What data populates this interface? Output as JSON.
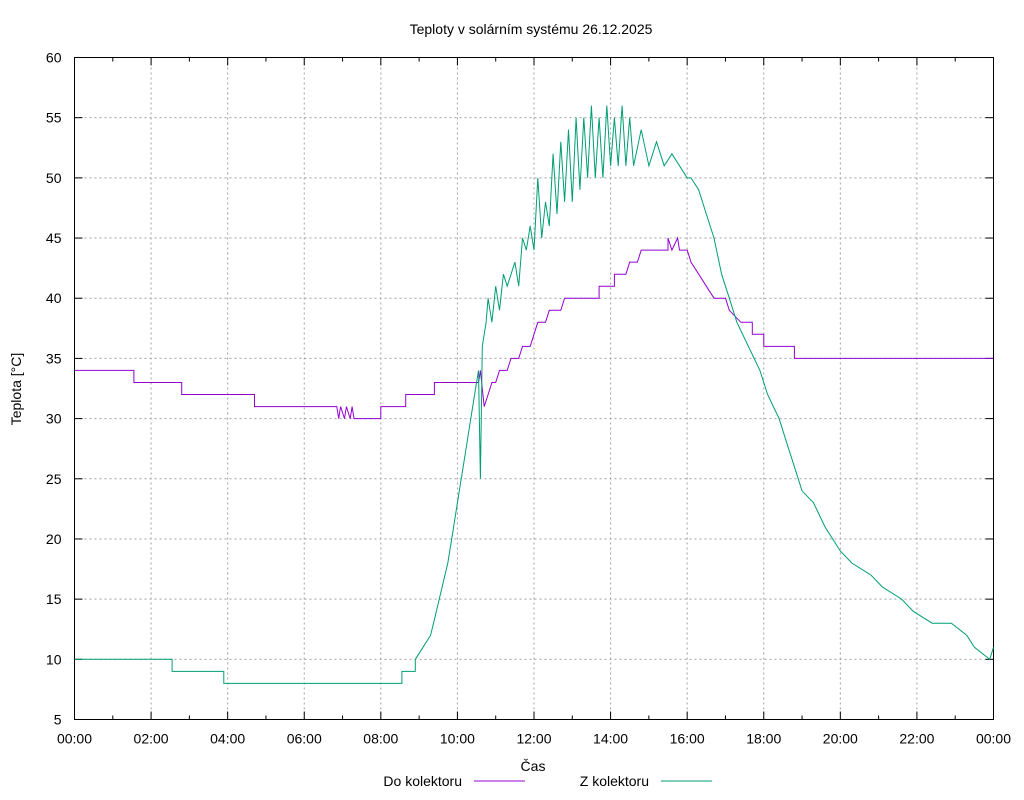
{
  "chart_data": {
    "type": "line",
    "title": "Teploty v solárním systému 26.12.2025",
    "xlabel": "Čas",
    "ylabel": "Teplota [°C]",
    "xlim": [
      0,
      24
    ],
    "ylim": [
      5,
      60
    ],
    "grid": true,
    "legend_position": "bottom-center",
    "x_tick_values": [
      0,
      2,
      4,
      6,
      8,
      10,
      12,
      14,
      16,
      18,
      20,
      22,
      24
    ],
    "x_tick_labels": [
      "00:00",
      "02:00",
      "04:00",
      "06:00",
      "08:00",
      "10:00",
      "12:00",
      "14:00",
      "16:00",
      "18:00",
      "20:00",
      "22:00",
      "00:00"
    ],
    "y_tick_values": [
      5,
      10,
      15,
      20,
      25,
      30,
      35,
      40,
      45,
      50,
      55,
      60
    ],
    "y_tick_labels": [
      "5",
      "10",
      "15",
      "20",
      "25",
      "30",
      "35",
      "40",
      "45",
      "50",
      "55",
      "60"
    ],
    "x_unit": "hours",
    "series": [
      {
        "name": "Do kolektoru",
        "color": "#9400d3",
        "points": [
          [
            0,
            34
          ],
          [
            1.55,
            34
          ],
          [
            1.55,
            33
          ],
          [
            2.8,
            33
          ],
          [
            2.8,
            32
          ],
          [
            4.7,
            32
          ],
          [
            4.7,
            31
          ],
          [
            6.85,
            31
          ],
          [
            6.9,
            30
          ],
          [
            6.95,
            31
          ],
          [
            7.05,
            30
          ],
          [
            7.1,
            31
          ],
          [
            7.2,
            30
          ],
          [
            7.25,
            31
          ],
          [
            7.3,
            30
          ],
          [
            8.0,
            30
          ],
          [
            8.0,
            31
          ],
          [
            8.65,
            31
          ],
          [
            8.65,
            32
          ],
          [
            9.4,
            32
          ],
          [
            9.4,
            33
          ],
          [
            10.55,
            33
          ],
          [
            10.6,
            34
          ],
          [
            10.7,
            31
          ],
          [
            10.8,
            32
          ],
          [
            10.9,
            33
          ],
          [
            11.0,
            33
          ],
          [
            11.1,
            34
          ],
          [
            11.3,
            34
          ],
          [
            11.4,
            35
          ],
          [
            11.6,
            35
          ],
          [
            11.7,
            36
          ],
          [
            11.9,
            36
          ],
          [
            12.0,
            37
          ],
          [
            12.1,
            38
          ],
          [
            12.3,
            38
          ],
          [
            12.4,
            39
          ],
          [
            12.7,
            39
          ],
          [
            12.8,
            40
          ],
          [
            13.7,
            40
          ],
          [
            13.7,
            41
          ],
          [
            14.1,
            41
          ],
          [
            14.1,
            42
          ],
          [
            14.4,
            42
          ],
          [
            14.5,
            43
          ],
          [
            14.7,
            43
          ],
          [
            14.8,
            44
          ],
          [
            15.5,
            44
          ],
          [
            15.5,
            45
          ],
          [
            15.6,
            44
          ],
          [
            15.75,
            45
          ],
          [
            15.8,
            44
          ],
          [
            16.0,
            44
          ],
          [
            16.1,
            43
          ],
          [
            16.3,
            42
          ],
          [
            16.5,
            41
          ],
          [
            16.7,
            40
          ],
          [
            17.0,
            40
          ],
          [
            17.1,
            39
          ],
          [
            17.4,
            38
          ],
          [
            17.7,
            38
          ],
          [
            17.7,
            37
          ],
          [
            18.0,
            37
          ],
          [
            18.0,
            36
          ],
          [
            18.8,
            36
          ],
          [
            18.8,
            35
          ],
          [
            24,
            35
          ]
        ]
      },
      {
        "name": "Z kolektoru",
        "color": "#009e73",
        "points": [
          [
            0,
            10
          ],
          [
            2.55,
            10
          ],
          [
            2.55,
            9
          ],
          [
            3.9,
            9
          ],
          [
            3.9,
            8
          ],
          [
            8.55,
            8
          ],
          [
            8.55,
            9
          ],
          [
            8.9,
            9
          ],
          [
            8.9,
            10
          ],
          [
            9.1,
            11
          ],
          [
            9.3,
            12
          ],
          [
            9.45,
            14
          ],
          [
            9.6,
            16
          ],
          [
            9.75,
            18
          ],
          [
            9.85,
            20
          ],
          [
            9.95,
            22
          ],
          [
            10.05,
            24
          ],
          [
            10.15,
            26
          ],
          [
            10.25,
            28
          ],
          [
            10.35,
            30
          ],
          [
            10.45,
            32
          ],
          [
            10.55,
            34
          ],
          [
            10.6,
            25
          ],
          [
            10.65,
            36
          ],
          [
            10.75,
            38
          ],
          [
            10.8,
            40
          ],
          [
            10.9,
            38
          ],
          [
            11.0,
            41
          ],
          [
            11.1,
            39
          ],
          [
            11.2,
            42
          ],
          [
            11.3,
            41
          ],
          [
            11.5,
            43
          ],
          [
            11.6,
            41
          ],
          [
            11.7,
            45
          ],
          [
            11.8,
            44
          ],
          [
            11.9,
            46
          ],
          [
            12.0,
            44
          ],
          [
            12.1,
            50
          ],
          [
            12.2,
            45
          ],
          [
            12.3,
            48
          ],
          [
            12.4,
            46
          ],
          [
            12.5,
            52
          ],
          [
            12.6,
            47
          ],
          [
            12.7,
            53
          ],
          [
            12.8,
            48
          ],
          [
            12.9,
            54
          ],
          [
            13.0,
            48
          ],
          [
            13.1,
            55
          ],
          [
            13.2,
            49
          ],
          [
            13.3,
            55
          ],
          [
            13.4,
            50
          ],
          [
            13.5,
            56
          ],
          [
            13.6,
            50
          ],
          [
            13.7,
            55
          ],
          [
            13.8,
            50
          ],
          [
            13.9,
            56
          ],
          [
            14.0,
            51
          ],
          [
            14.1,
            55
          ],
          [
            14.2,
            51
          ],
          [
            14.3,
            56
          ],
          [
            14.4,
            51
          ],
          [
            14.5,
            55
          ],
          [
            14.6,
            51
          ],
          [
            14.8,
            54
          ],
          [
            15.0,
            51
          ],
          [
            15.2,
            53
          ],
          [
            15.4,
            51
          ],
          [
            15.6,
            52
          ],
          [
            15.8,
            51
          ],
          [
            16.0,
            50
          ],
          [
            16.1,
            50
          ],
          [
            16.3,
            49
          ],
          [
            16.5,
            47
          ],
          [
            16.7,
            45
          ],
          [
            16.9,
            42
          ],
          [
            17.1,
            40
          ],
          [
            17.3,
            38
          ],
          [
            17.6,
            36
          ],
          [
            17.9,
            34
          ],
          [
            18.1,
            32
          ],
          [
            18.4,
            30
          ],
          [
            18.6,
            28
          ],
          [
            18.8,
            26
          ],
          [
            19.0,
            24
          ],
          [
            19.3,
            23
          ],
          [
            19.6,
            21
          ],
          [
            20.0,
            19
          ],
          [
            20.3,
            18
          ],
          [
            20.8,
            17
          ],
          [
            21.1,
            16
          ],
          [
            21.6,
            15
          ],
          [
            21.9,
            14
          ],
          [
            22.4,
            13
          ],
          [
            22.9,
            13
          ],
          [
            23.3,
            12
          ],
          [
            23.5,
            11
          ],
          [
            23.9,
            10
          ],
          [
            24,
            11
          ]
        ]
      }
    ]
  }
}
